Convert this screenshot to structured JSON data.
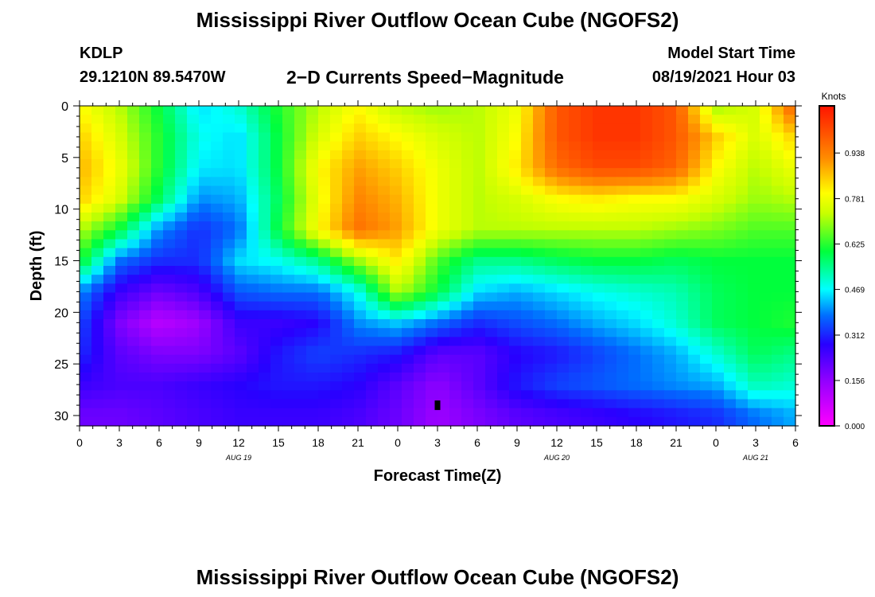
{
  "header": {
    "title": "Mississippi River Outflow Ocean Cube (NGOFS2)",
    "station_id": "KDLP",
    "station_coords": "29.1210N  89.5470W",
    "plot_title": "2−D Currents Speed−Magnitude",
    "model_start_label": "Model Start Time",
    "model_start_value": "08/19/2021 Hour 03"
  },
  "footer": {
    "title": "Mississippi River Outflow Ocean Cube (NGOFS2)"
  },
  "chart_data": {
    "type": "heatmap",
    "xlabel": "Forecast Time(Z)",
    "ylabel": "Depth (ft)",
    "x_tick_labels": [
      "0",
      "3",
      "6",
      "9",
      "12",
      "15",
      "18",
      "21",
      "0",
      "3",
      "6",
      "9",
      "12",
      "15",
      "18",
      "21",
      "0",
      "3",
      "6"
    ],
    "x_range_hours": [
      0,
      54
    ],
    "date_labels": [
      {
        "text": "AUG  19",
        "hour": 12
      },
      {
        "text": "AUG  20",
        "hour": 36
      },
      {
        "text": "AUG  21",
        "hour": 51
      }
    ],
    "y_ticks": [
      0,
      5,
      10,
      15,
      20,
      25,
      30
    ],
    "y_range": [
      0,
      31
    ],
    "y_inverted": true,
    "colorbar": {
      "unit": "Knots",
      "ticks": [
        "0.938",
        "0.781",
        "0.625",
        "0.469",
        "0.312",
        "0.156",
        "0.000"
      ],
      "range": [
        0,
        1.1
      ]
    },
    "marker": {
      "hour": 27,
      "depth": 29
    },
    "grid": {
      "hours": [
        0,
        3,
        6,
        9,
        12,
        15,
        18,
        21,
        24,
        27,
        30,
        33,
        36,
        39,
        42,
        45,
        48,
        51,
        54
      ],
      "depths": [
        0,
        3,
        6,
        9,
        12,
        15,
        18,
        21,
        24,
        27,
        30
      ],
      "values": [
        [
          0.8,
          0.72,
          0.6,
          0.45,
          0.5,
          0.62,
          0.72,
          0.8,
          0.72,
          0.7,
          0.72,
          0.78,
          1.0,
          1.05,
          1.05,
          1.0,
          0.7,
          0.75,
          1.0
        ],
        [
          0.85,
          0.75,
          0.62,
          0.48,
          0.45,
          0.6,
          0.75,
          0.85,
          0.8,
          0.75,
          0.72,
          0.8,
          1.0,
          1.05,
          1.05,
          1.0,
          0.85,
          0.75,
          0.85
        ],
        [
          0.88,
          0.78,
          0.62,
          0.46,
          0.45,
          0.6,
          0.8,
          0.9,
          0.85,
          0.78,
          0.72,
          0.82,
          0.97,
          1.02,
          1.02,
          0.98,
          0.8,
          0.72,
          0.78
        ],
        [
          0.85,
          0.75,
          0.58,
          0.4,
          0.42,
          0.58,
          0.78,
          0.93,
          0.88,
          0.78,
          0.72,
          0.75,
          0.8,
          0.82,
          0.8,
          0.8,
          0.75,
          0.7,
          0.72
        ],
        [
          0.72,
          0.6,
          0.4,
          0.32,
          0.38,
          0.6,
          0.8,
          0.96,
          0.9,
          0.78,
          0.72,
          0.72,
          0.72,
          0.72,
          0.72,
          0.7,
          0.68,
          0.65,
          0.65
        ],
        [
          0.62,
          0.38,
          0.32,
          0.32,
          0.45,
          0.48,
          0.55,
          0.7,
          0.82,
          0.65,
          0.55,
          0.55,
          0.58,
          0.6,
          0.6,
          0.58,
          0.6,
          0.6,
          0.6
        ],
        [
          0.4,
          0.26,
          0.2,
          0.24,
          0.36,
          0.38,
          0.38,
          0.48,
          0.72,
          0.6,
          0.45,
          0.42,
          0.45,
          0.48,
          0.5,
          0.52,
          0.58,
          0.6,
          0.6
        ],
        [
          0.35,
          0.18,
          0.1,
          0.14,
          0.26,
          0.26,
          0.28,
          0.4,
          0.44,
          0.38,
          0.32,
          0.35,
          0.38,
          0.42,
          0.45,
          0.5,
          0.58,
          0.6,
          0.62
        ],
        [
          0.32,
          0.22,
          0.18,
          0.18,
          0.22,
          0.3,
          0.34,
          0.32,
          0.3,
          0.22,
          0.22,
          0.28,
          0.3,
          0.34,
          0.38,
          0.42,
          0.5,
          0.58,
          0.55
        ],
        [
          0.26,
          0.24,
          0.24,
          0.26,
          0.28,
          0.3,
          0.3,
          0.28,
          0.22,
          0.16,
          0.22,
          0.3,
          0.34,
          0.36,
          0.38,
          0.4,
          0.42,
          0.52,
          0.5
        ],
        [
          0.2,
          0.2,
          0.22,
          0.24,
          0.26,
          0.26,
          0.26,
          0.24,
          0.2,
          0.14,
          0.18,
          0.22,
          0.24,
          0.26,
          0.28,
          0.3,
          0.32,
          0.38,
          0.42
        ]
      ]
    }
  }
}
